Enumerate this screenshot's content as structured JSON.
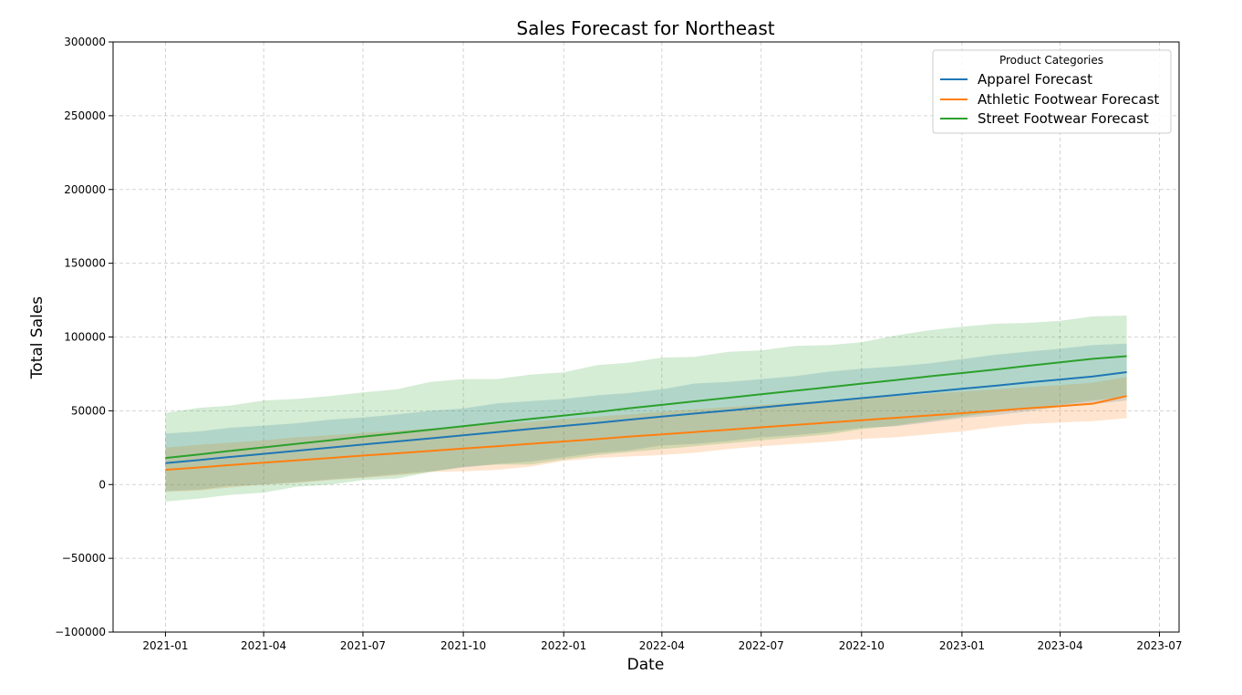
{
  "chart_data": {
    "type": "line",
    "title": "Sales Forecast for Northeast",
    "xlabel": "Date",
    "ylabel": "Total Sales",
    "x": [
      "2021-01-01",
      "2021-02-01",
      "2021-03-01",
      "2021-04-01",
      "2021-05-01",
      "2021-06-01",
      "2021-07-01",
      "2021-08-01",
      "2021-09-01",
      "2021-10-01",
      "2021-11-01",
      "2021-12-01",
      "2022-01-01",
      "2022-02-01",
      "2022-03-01",
      "2022-04-01",
      "2022-05-01",
      "2022-06-01",
      "2022-07-01",
      "2022-08-01",
      "2022-09-01",
      "2022-10-01",
      "2022-11-01",
      "2022-12-01",
      "2023-01-01",
      "2023-02-01",
      "2023-03-01",
      "2023-04-01",
      "2023-05-01",
      "2023-06-01"
    ],
    "xlim": [
      "2020-11-14",
      "2023-07-19"
    ],
    "ylim": [
      -100000,
      300000
    ],
    "xticks": [
      "2021-01",
      "2021-04",
      "2021-07",
      "2021-10",
      "2022-01",
      "2022-04",
      "2022-07",
      "2022-10",
      "2023-01",
      "2023-04",
      "2023-07"
    ],
    "yticks": [
      -100000,
      -50000,
      0,
      50000,
      100000,
      150000,
      200000,
      250000,
      300000
    ],
    "grid": true,
    "legend": {
      "title": "Product Categories",
      "position": "top-right"
    },
    "series": [
      {
        "name": "Apparel Forecast",
        "color": "#1f77b4",
        "values": [
          14500,
          16600,
          18700,
          20800,
          22900,
          25000,
          27100,
          29200,
          31300,
          33400,
          35500,
          37600,
          39700,
          41800,
          43900,
          46000,
          48100,
          50200,
          52300,
          54400,
          56500,
          58600,
          60700,
          62800,
          64900,
          67000,
          69100,
          71200,
          73300,
          76200
        ],
        "lower": [
          -4500,
          -3500,
          -1000,
          0,
          1500,
          3500,
          5000,
          7000,
          9000,
          11500,
          14000,
          15500,
          18500,
          21500,
          23000,
          26500,
          27500,
          29500,
          32000,
          33500,
          35500,
          38500,
          39500,
          42000,
          45000,
          47000,
          49500,
          52500,
          54500,
          57000
        ],
        "upper": [
          34500,
          36000,
          38500,
          40000,
          41500,
          44000,
          45500,
          47500,
          50000,
          51500,
          55000,
          56500,
          58000,
          60500,
          62000,
          64500,
          68500,
          69500,
          71500,
          73500,
          76500,
          78500,
          80000,
          82000,
          85000,
          88000,
          90000,
          92000,
          94500,
          95500
        ]
      },
      {
        "name": "Athletic Footwear Forecast",
        "color": "#ff7f0e",
        "values": [
          10000,
          11600,
          13200,
          14800,
          16400,
          18000,
          19600,
          21200,
          22800,
          24400,
          26000,
          27600,
          29200,
          30800,
          32400,
          34000,
          35600,
          37200,
          38800,
          40400,
          42000,
          43600,
          45200,
          46800,
          48400,
          50000,
          51600,
          53200,
          54800,
          60000
        ],
        "lower": [
          -5000,
          -4000,
          -2000,
          0,
          1000,
          3000,
          4500,
          6000,
          8500,
          9000,
          10000,
          12000,
          16000,
          18000,
          19000,
          20000,
          21500,
          24000,
          26000,
          27500,
          29000,
          31000,
          32000,
          34000,
          36000,
          39000,
          41000,
          42000,
          43000,
          45000
        ],
        "upper": [
          25000,
          27000,
          28500,
          30000,
          32000,
          33500,
          35000,
          36500,
          38000,
          39500,
          41000,
          42500,
          44500,
          46000,
          47500,
          49500,
          51000,
          52500,
          54000,
          55500,
          57000,
          58500,
          60000,
          61500,
          63000,
          64500,
          66000,
          67500,
          69000,
          73000
        ]
      },
      {
        "name": "Street Footwear Forecast",
        "color": "#2ca02c",
        "values": [
          18000,
          20400,
          22800,
          25200,
          27600,
          30000,
          32400,
          34800,
          37200,
          39600,
          42000,
          44400,
          46800,
          49200,
          51600,
          54000,
          56400,
          58800,
          61200,
          63600,
          66000,
          68400,
          70800,
          73200,
          75600,
          78000,
          80400,
          82800,
          85200,
          87000
        ],
        "lower": [
          -11500,
          -9500,
          -7000,
          -5500,
          -1500,
          0,
          3000,
          4000,
          8500,
          12000,
          13500,
          13500,
          17000,
          20000,
          22000,
          24000,
          26000,
          28000,
          30000,
          32000,
          34000,
          37500,
          40000,
          43000,
          46000,
          49000,
          51500,
          54000,
          57000,
          59500
        ],
        "upper": [
          48500,
          52000,
          53500,
          57000,
          58000,
          60000,
          62500,
          64500,
          69500,
          71500,
          71500,
          74500,
          76000,
          81000,
          82500,
          86000,
          86500,
          90000,
          91000,
          94000,
          94500,
          96500,
          101000,
          104500,
          107000,
          109000,
          109500,
          111000,
          114000,
          114500
        ]
      }
    ]
  }
}
